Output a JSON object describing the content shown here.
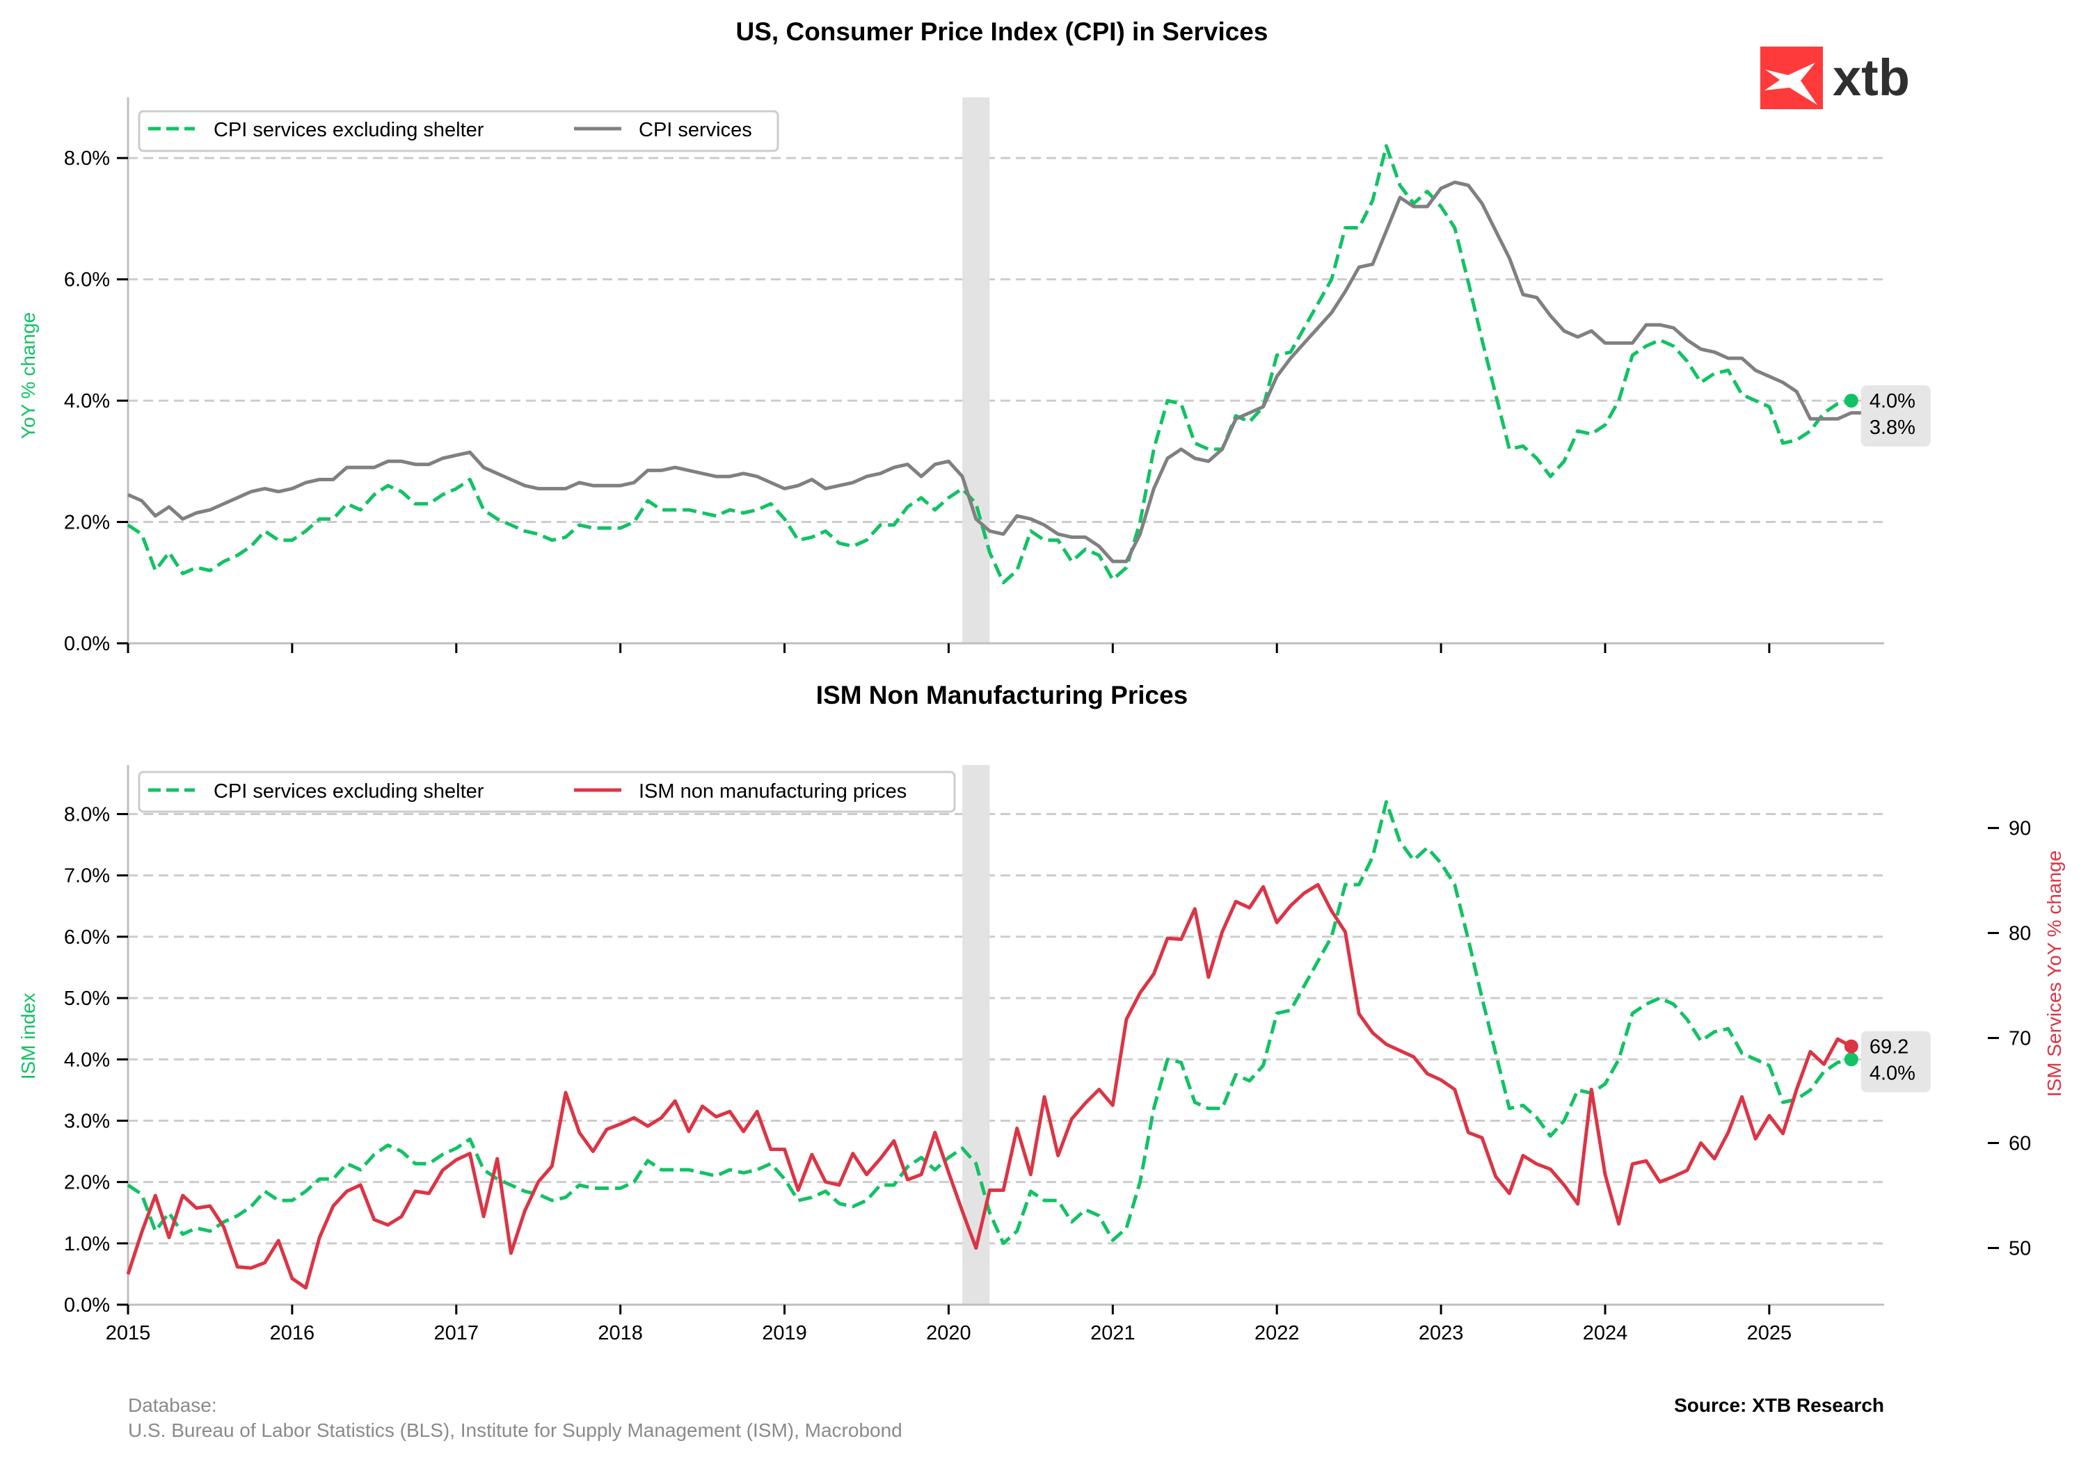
{
  "colors": {
    "green": "#12c264",
    "grey": "#808080",
    "red": "#db3545",
    "grid": "#cccccc",
    "recession_band": "#e3e3e3",
    "annotation_bg": "#e6e6e6",
    "logo_red": "#ff3a3a",
    "logo_text": "#2f2f2f",
    "footer_grey": "#8a8a8a"
  },
  "logo": {
    "text": "xtb",
    "icon": "xtb-x-logo-icon"
  },
  "footer": {
    "database_label": "Database:",
    "database_sources": "U.S. Bureau of Labor Statistics (BLS), Institute for Supply Management (ISM), Macrobond",
    "source": "Source: XTB Research"
  },
  "chart_data": [
    {
      "type": "line",
      "title": "US, Consumer Price Index (CPI) in Services",
      "xlabel": "",
      "ylabel": "YoY % change",
      "x_start": "2015-01",
      "x_end": "2025-08",
      "frequency": "monthly",
      "xlim": [
        2015.0,
        2025.7
      ],
      "ylim": [
        0,
        9.0
      ],
      "yticks": [
        0,
        2,
        4,
        6,
        8
      ],
      "ytick_labels": [
        "0.0%",
        "2.0%",
        "4.0%",
        "6.0%",
        "8.0%"
      ],
      "xticks": [
        2015,
        2016,
        2017,
        2018,
        2019,
        2020,
        2021,
        2022,
        2023,
        2024,
        2025
      ],
      "xtick_labels_shown": false,
      "grid": "horizontal dashed",
      "legend": {
        "placement": "top-left",
        "entries": [
          "CPI services excluding shelter",
          "CPI services"
        ]
      },
      "shaded_region": {
        "from": "2020-02",
        "to": "2020-04",
        "meaning": "recession"
      },
      "series": [
        {
          "name": "CPI services excluding shelter",
          "style": "dashed",
          "color": "green",
          "values": [
            1.95,
            1.8,
            1.2,
            1.5,
            1.15,
            1.25,
            1.2,
            1.35,
            1.45,
            1.6,
            1.85,
            1.7,
            1.7,
            1.85,
            2.05,
            2.05,
            2.3,
            2.2,
            2.45,
            2.6,
            2.5,
            2.3,
            2.3,
            2.45,
            2.55,
            2.7,
            2.2,
            2.05,
            1.95,
            1.85,
            1.8,
            1.7,
            1.75,
            1.95,
            1.9,
            1.9,
            1.9,
            2.0,
            2.35,
            2.2,
            2.2,
            2.2,
            2.15,
            2.1,
            2.2,
            2.15,
            2.2,
            2.3,
            2.05,
            1.7,
            1.75,
            1.85,
            1.65,
            1.6,
            1.7,
            1.95,
            1.95,
            2.25,
            2.4,
            2.2,
            2.4,
            2.55,
            2.3,
            1.5,
            1.0,
            1.2,
            1.85,
            1.7,
            1.7,
            1.35,
            1.55,
            1.45,
            1.05,
            1.25,
            2.0,
            3.2,
            4.0,
            3.95,
            3.3,
            3.2,
            3.2,
            3.75,
            3.65,
            3.9,
            4.75,
            4.8,
            5.2,
            5.6,
            6.0,
            6.85,
            6.85,
            7.3,
            8.2,
            7.55,
            7.25,
            7.45,
            7.2,
            6.85,
            5.95,
            5.0,
            4.1,
            3.2,
            3.25,
            3.05,
            2.75,
            3.0,
            3.5,
            3.45,
            3.6,
            4.0,
            4.75,
            4.9,
            5.0,
            4.9,
            4.65,
            4.3,
            4.45,
            4.5,
            4.1,
            4.0,
            3.9,
            3.3,
            3.35,
            3.5,
            3.8,
            3.95,
            4.0
          ]
        },
        {
          "name": "CPI services",
          "style": "solid",
          "color": "grey",
          "values": [
            2.45,
            2.35,
            2.1,
            2.25,
            2.05,
            2.15,
            2.2,
            2.3,
            2.4,
            2.5,
            2.55,
            2.5,
            2.55,
            2.65,
            2.7,
            2.7,
            2.9,
            2.9,
            2.9,
            3.0,
            3.0,
            2.95,
            2.95,
            3.05,
            3.1,
            3.15,
            2.9,
            2.8,
            2.7,
            2.6,
            2.55,
            2.55,
            2.55,
            2.65,
            2.6,
            2.6,
            2.6,
            2.65,
            2.85,
            2.85,
            2.9,
            2.85,
            2.8,
            2.75,
            2.75,
            2.8,
            2.75,
            2.65,
            2.55,
            2.6,
            2.7,
            2.55,
            2.6,
            2.65,
            2.75,
            2.8,
            2.9,
            2.95,
            2.75,
            2.95,
            3.0,
            2.75,
            2.05,
            1.85,
            1.8,
            2.1,
            2.05,
            1.95,
            1.8,
            1.75,
            1.75,
            1.6,
            1.35,
            1.35,
            1.8,
            2.55,
            3.05,
            3.2,
            3.05,
            3.0,
            3.2,
            3.7,
            3.8,
            3.9,
            4.4,
            4.7,
            4.95,
            5.2,
            5.45,
            5.8,
            6.2,
            6.25,
            6.8,
            7.35,
            7.2,
            7.2,
            7.5,
            7.6,
            7.55,
            7.25,
            6.8,
            6.35,
            5.75,
            5.7,
            5.4,
            5.15,
            5.05,
            5.15,
            4.95,
            4.95,
            4.95,
            5.25,
            5.25,
            5.2,
            5.0,
            4.85,
            4.8,
            4.7,
            4.7,
            4.5,
            4.4,
            4.3,
            4.15,
            3.7,
            3.7,
            3.7,
            3.8,
            3.8,
            3.8
          ]
        }
      ],
      "end_labels": [
        {
          "series": "CPI services excluding shelter",
          "text": "4.0%"
        },
        {
          "series": "CPI services",
          "text": "3.8%"
        }
      ]
    },
    {
      "type": "line",
      "title": "ISM Non Manufacturing Prices",
      "xlabel": "",
      "ylabel": "ISM index",
      "ylabel_right": "ISM Services YoY % change",
      "x_start": "2015-01",
      "x_end": "2025-08",
      "frequency": "monthly",
      "xlim": [
        2015.0,
        2025.7
      ],
      "ylim": [
        0,
        8.8
      ],
      "yticks": [
        0,
        1,
        2,
        3,
        4,
        5,
        6,
        7,
        8
      ],
      "ytick_labels": [
        "0.0%",
        "1.0%",
        "2.0%",
        "3.0%",
        "4.0%",
        "5.0%",
        "6.0%",
        "7.0%",
        "8.0%"
      ],
      "ylim_right": [
        44.6,
        96.0
      ],
      "yticks_right": [
        50,
        60,
        70,
        80,
        90
      ],
      "ytick_labels_right": [
        "50",
        "60",
        "70",
        "80",
        "90"
      ],
      "xticks": [
        2015,
        2016,
        2017,
        2018,
        2019,
        2020,
        2021,
        2022,
        2023,
        2024,
        2025
      ],
      "xtick_labels": [
        "2015",
        "2016",
        "2017",
        "2018",
        "2019",
        "2020",
        "2021",
        "2022",
        "2023",
        "2024",
        "2025"
      ],
      "grid": "horizontal dashed",
      "legend": {
        "placement": "top-left",
        "entries": [
          "CPI services excluding shelter",
          "ISM non manufacturing prices"
        ]
      },
      "shaded_region": {
        "from": "2020-02",
        "to": "2020-04",
        "meaning": "recession"
      },
      "series": [
        {
          "name": "CPI services excluding shelter",
          "style": "dashed",
          "color": "green",
          "axis": "left",
          "values": [
            1.95,
            1.8,
            1.2,
            1.5,
            1.15,
            1.25,
            1.2,
            1.35,
            1.45,
            1.6,
            1.85,
            1.7,
            1.7,
            1.85,
            2.05,
            2.05,
            2.3,
            2.2,
            2.45,
            2.6,
            2.5,
            2.3,
            2.3,
            2.45,
            2.55,
            2.7,
            2.2,
            2.05,
            1.95,
            1.85,
            1.8,
            1.7,
            1.75,
            1.95,
            1.9,
            1.9,
            1.9,
            2.0,
            2.35,
            2.2,
            2.2,
            2.2,
            2.15,
            2.1,
            2.2,
            2.15,
            2.2,
            2.3,
            2.05,
            1.7,
            1.75,
            1.85,
            1.65,
            1.6,
            1.7,
            1.95,
            1.95,
            2.25,
            2.4,
            2.2,
            2.4,
            2.55,
            2.3,
            1.5,
            1.0,
            1.2,
            1.85,
            1.7,
            1.7,
            1.35,
            1.55,
            1.45,
            1.05,
            1.25,
            2.0,
            3.2,
            4.0,
            3.95,
            3.3,
            3.2,
            3.2,
            3.75,
            3.65,
            3.9,
            4.75,
            4.8,
            5.2,
            5.6,
            6.0,
            6.85,
            6.85,
            7.3,
            8.2,
            7.55,
            7.25,
            7.45,
            7.2,
            6.85,
            5.95,
            5.0,
            4.1,
            3.2,
            3.25,
            3.05,
            2.75,
            3.0,
            3.5,
            3.45,
            3.6,
            4.0,
            4.75,
            4.9,
            5.0,
            4.9,
            4.65,
            4.3,
            4.45,
            4.5,
            4.1,
            4.0,
            3.9,
            3.3,
            3.35,
            3.5,
            3.8,
            3.95,
            4.0
          ]
        },
        {
          "name": "ISM non manufacturing prices",
          "style": "solid",
          "color": "red",
          "axis": "right",
          "values": [
            47.5,
            51.5,
            55.0,
            51.0,
            55.0,
            53.8,
            54.0,
            52.0,
            48.2,
            48.1,
            48.6,
            50.7,
            47.1,
            46.2,
            51.0,
            54.0,
            55.4,
            56.0,
            52.7,
            52.2,
            53.0,
            55.4,
            55.2,
            57.4,
            58.4,
            59.0,
            53.0,
            58.5,
            49.5,
            53.5,
            56.3,
            57.8,
            64.8,
            61.0,
            59.2,
            61.3,
            61.8,
            62.4,
            61.6,
            62.4,
            64.0,
            61.1,
            63.5,
            62.5,
            63.0,
            61.1,
            63.0,
            59.4,
            59.4,
            55.5,
            58.9,
            56.3,
            56.0,
            59.0,
            57.0,
            58.5,
            60.2,
            56.5,
            57.0,
            61.0,
            57.2,
            53.5,
            50.0,
            55.5,
            55.5,
            61.4,
            57.0,
            64.4,
            58.8,
            62.3,
            63.8,
            65.1,
            63.6,
            71.8,
            74.3,
            76.1,
            79.5,
            79.4,
            82.3,
            75.8,
            80.1,
            83.0,
            82.4,
            84.4,
            81.0,
            82.6,
            83.8,
            84.6,
            82.1,
            80.1,
            72.3,
            70.5,
            69.4,
            68.8,
            68.2,
            66.6,
            66.0,
            65.1,
            61.0,
            60.5,
            56.8,
            55.2,
            58.8,
            58.0,
            57.5,
            56.0,
            54.2,
            65.1,
            57.0,
            52.3,
            58.0,
            58.3,
            56.3,
            56.8,
            57.4,
            60.0,
            58.5,
            61.0,
            64.4,
            60.4,
            62.6,
            60.9,
            65.1,
            68.7,
            67.5,
            69.9,
            69.2
          ]
        }
      ],
      "end_labels": [
        {
          "series": "ISM non manufacturing prices",
          "text": "69.2"
        },
        {
          "series": "CPI services excluding shelter",
          "text": "4.0%"
        }
      ]
    }
  ]
}
